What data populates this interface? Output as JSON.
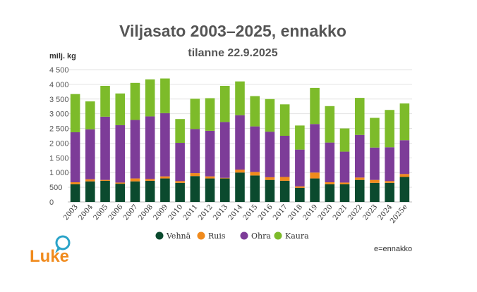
{
  "chart_data": {
    "type": "bar",
    "stacked": true,
    "title": "Viljasato 2003–2025, ennakko",
    "subtitle": "tilanne 22.9.2025",
    "ylabel": "milj. kg",
    "ylim": [
      0,
      4500
    ],
    "yticks": [
      {
        "value": 0,
        "label": "0"
      },
      {
        "value": 500,
        "label": "500"
      },
      {
        "value": 1000,
        "label": "1 000"
      },
      {
        "value": 1500,
        "label": "1 500"
      },
      {
        "value": 2000,
        "label": "2 000"
      },
      {
        "value": 2500,
        "label": "2 500"
      },
      {
        "value": 3000,
        "label": "3 000"
      },
      {
        "value": 3500,
        "label": "3 500"
      },
      {
        "value": 4000,
        "label": "4 000"
      },
      {
        "value": 4500,
        "label": "4 500"
      }
    ],
    "grid": true,
    "legend_position": "bottom",
    "categories": [
      "2003",
      "2004",
      "2005",
      "2006",
      "2007",
      "2008",
      "2009",
      "2010",
      "2011",
      "2012",
      "2013",
      "2014",
      "2015",
      "2016",
      "2017",
      "2018",
      "2019",
      "2020",
      "2021",
      "2022",
      "2023",
      "2024",
      "2025e"
    ],
    "series": [
      {
        "name": "Vehnä",
        "color": "#0b4a2e",
        "values": [
          600,
          700,
          720,
          620,
          700,
          720,
          800,
          650,
          880,
          800,
          800,
          1000,
          900,
          750,
          720,
          480,
          800,
          600,
          600,
          750,
          650,
          650,
          850
        ]
      },
      {
        "name": "Ruis",
        "color": "#f08a1c",
        "values": [
          70,
          70,
          30,
          40,
          100,
          60,
          70,
          60,
          100,
          70,
          20,
          100,
          120,
          90,
          130,
          50,
          200,
          70,
          60,
          80,
          100,
          60,
          100
        ]
      },
      {
        "name": "Ohra",
        "color": "#7d3c98",
        "values": [
          1700,
          1700,
          2150,
          1950,
          1990,
          2130,
          2150,
          1300,
          1500,
          1550,
          1900,
          1850,
          1550,
          1550,
          1400,
          1250,
          1650,
          1350,
          1050,
          1450,
          1100,
          1150,
          1150
        ]
      },
      {
        "name": "Kaura",
        "color": "#7dbb2a",
        "values": [
          1300,
          950,
          1050,
          1080,
          1260,
          1260,
          1180,
          810,
          1030,
          1110,
          1230,
          1150,
          1030,
          1110,
          1070,
          820,
          1230,
          1240,
          790,
          1260,
          1010,
          1270,
          1250
        ]
      }
    ],
    "note": "e=ennakko"
  },
  "logo": {
    "text": "Luke",
    "color": "#f08a1c",
    "accent": "#2aa3c8"
  }
}
